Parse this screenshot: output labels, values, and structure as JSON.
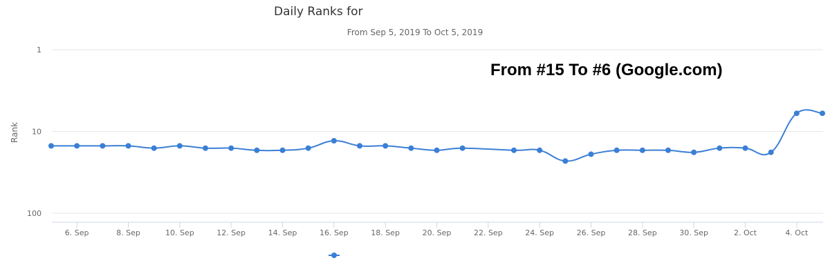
{
  "chart_data": {
    "type": "line",
    "title": "Daily Ranks for",
    "subtitle": "From Sep 5, 2019 To Oct 5, 2019",
    "annotation": "From #15 To #6 (Google.com)",
    "ylabel": "Rank",
    "xlabel": "",
    "y_scale": "log",
    "y_reversed": true,
    "ylim": [
      1,
      100
    ],
    "y_ticks": [
      1,
      10,
      100
    ],
    "x_range": [
      "2019-09-05",
      "2019-10-05"
    ],
    "x_ticks": [
      {
        "date": "2019-09-06",
        "label": "6. Sep"
      },
      {
        "date": "2019-09-08",
        "label": "8. Sep"
      },
      {
        "date": "2019-09-10",
        "label": "10. Sep"
      },
      {
        "date": "2019-09-12",
        "label": "12. Sep"
      },
      {
        "date": "2019-09-14",
        "label": "14. Sep"
      },
      {
        "date": "2019-09-16",
        "label": "16. Sep"
      },
      {
        "date": "2019-09-18",
        "label": "18. Sep"
      },
      {
        "date": "2019-09-20",
        "label": "20. Sep"
      },
      {
        "date": "2019-09-22",
        "label": "22. Sep"
      },
      {
        "date": "2019-09-24",
        "label": "24. Sep"
      },
      {
        "date": "2019-09-26",
        "label": "26. Sep"
      },
      {
        "date": "2019-09-28",
        "label": "28. Sep"
      },
      {
        "date": "2019-09-30",
        "label": "30. Sep"
      },
      {
        "date": "2019-10-02",
        "label": "2. Oct"
      },
      {
        "date": "2019-10-04",
        "label": "4. Oct"
      }
    ],
    "grid": true,
    "legend_position": "bottom-center",
    "series": [
      {
        "name": "",
        "color": "#3a7fd5",
        "points": [
          {
            "date": "2019-09-05",
            "rank": 15
          },
          {
            "date": "2019-09-06",
            "rank": 15
          },
          {
            "date": "2019-09-07",
            "rank": 15
          },
          {
            "date": "2019-09-08",
            "rank": 15
          },
          {
            "date": "2019-09-09",
            "rank": 16
          },
          {
            "date": "2019-09-10",
            "rank": 15
          },
          {
            "date": "2019-09-11",
            "rank": 16
          },
          {
            "date": "2019-09-12",
            "rank": 16
          },
          {
            "date": "2019-09-13",
            "rank": 17
          },
          {
            "date": "2019-09-14",
            "rank": 17
          },
          {
            "date": "2019-09-15",
            "rank": 16
          },
          {
            "date": "2019-09-16",
            "rank": 13
          },
          {
            "date": "2019-09-17",
            "rank": 15
          },
          {
            "date": "2019-09-18",
            "rank": 15
          },
          {
            "date": "2019-09-19",
            "rank": 16
          },
          {
            "date": "2019-09-20",
            "rank": 17
          },
          {
            "date": "2019-09-21",
            "rank": 16
          },
          {
            "date": "2019-09-23",
            "rank": 17
          },
          {
            "date": "2019-09-24",
            "rank": 17
          },
          {
            "date": "2019-09-25",
            "rank": 23
          },
          {
            "date": "2019-09-26",
            "rank": 19
          },
          {
            "date": "2019-09-27",
            "rank": 17
          },
          {
            "date": "2019-09-28",
            "rank": 17
          },
          {
            "date": "2019-09-29",
            "rank": 17
          },
          {
            "date": "2019-09-30",
            "rank": 18
          },
          {
            "date": "2019-10-01",
            "rank": 16
          },
          {
            "date": "2019-10-02",
            "rank": 16
          },
          {
            "date": "2019-10-03",
            "rank": 18
          },
          {
            "date": "2019-10-04",
            "rank": 6
          },
          {
            "date": "2019-10-05",
            "rank": 6
          }
        ]
      }
    ]
  }
}
